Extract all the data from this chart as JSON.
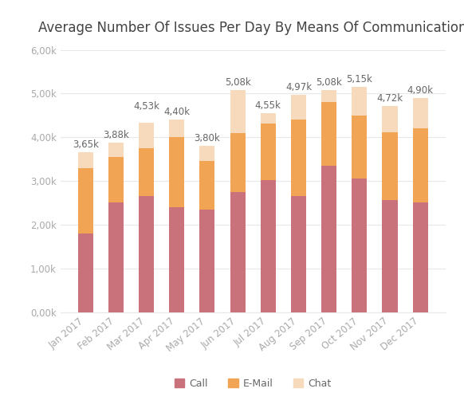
{
  "title": "Average Number Of Issues Per Day By Means Of Communication",
  "months": [
    "Jan 2017",
    "Feb 2017",
    "Mar 2017",
    "Apr 2017",
    "May 2017",
    "Jun 2017",
    "Jul 2017",
    "Aug 2017",
    "Sep 2017",
    "Oct 2017",
    "Nov 2017",
    "Dec 2017"
  ],
  "call": [
    1800,
    2500,
    2650,
    2400,
    2350,
    2750,
    3020,
    2650,
    3350,
    3050,
    2570,
    2500
  ],
  "email": [
    1500,
    1050,
    1100,
    1600,
    1100,
    1350,
    1300,
    1750,
    1450,
    1450,
    1550,
    1700
  ],
  "chat": [
    350,
    330,
    580,
    400,
    350,
    980,
    230,
    570,
    280,
    650,
    600,
    700
  ],
  "totals": [
    3650,
    3880,
    4530,
    4400,
    3800,
    5080,
    4550,
    4970,
    5080,
    5150,
    4720,
    4900
  ],
  "call_color": "#c9727c",
  "email_color": "#f0a454",
  "chat_color": "#f7d9bc",
  "bar_width": 0.5,
  "ylim": [
    0,
    6000
  ],
  "yticks": [
    0,
    1000,
    2000,
    3000,
    4000,
    5000,
    6000
  ],
  "ytick_labels": [
    "0,00k",
    "1,00k",
    "2,00k",
    "3,00k",
    "4,00k",
    "5,00k",
    "6,00k"
  ],
  "background_color": "#ffffff",
  "grid_color": "#e8e8e8",
  "title_fontsize": 12,
  "tick_fontsize": 8.5,
  "label_fontsize": 8.5,
  "legend_labels": [
    "Call",
    "E-Mail",
    "Chat"
  ],
  "annotation_color": "#666666",
  "tick_color": "#aaaaaa"
}
